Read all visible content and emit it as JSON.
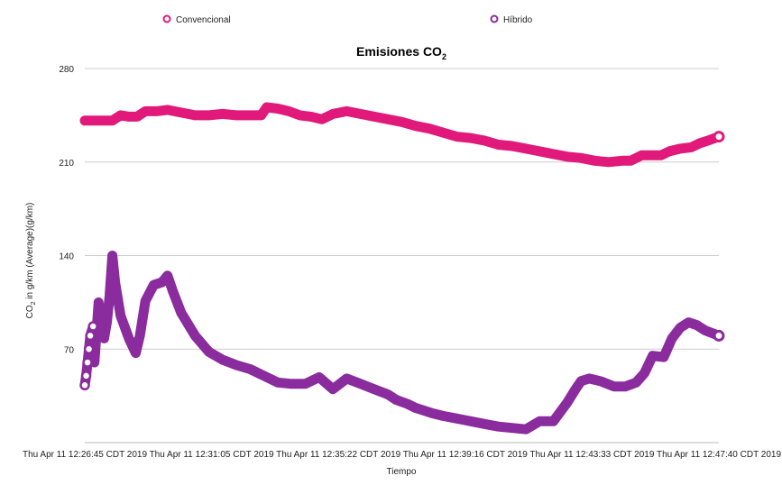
{
  "chart_data": {
    "type": "line",
    "title": "Emisiones CO",
    "title_subscript": "2",
    "xlabel": "Tiempo",
    "ylabel_prefix": "CO",
    "ylabel_subscript": "2",
    "ylabel_suffix": " in g/km (Average)(g/km)",
    "ylim": [
      0,
      280
    ],
    "yticks": [
      70,
      140,
      210,
      280
    ],
    "grid": true,
    "legend_position": "top",
    "x_tick_labels": [
      "Thu Apr 11 12:26:45 CDT 2019",
      "Thu Apr 11 12:31:05 CDT 2019",
      "Thu Apr 11 12:35:22 CDT 2019",
      "Thu Apr 11 12:39:16 CDT 2019",
      "Thu Apr 11 12:43:33 CDT 2019",
      "Thu Apr 11 12:47:40 CDT 2019"
    ],
    "x_unit": "minutes",
    "x_range": [
      0,
      23
    ],
    "series": [
      {
        "name": "Convencional",
        "color": "#e0197a",
        "x": [
          0,
          0.8,
          1.0,
          1.3,
          1.6,
          1.9,
          2.2,
          2.6,
          3.0,
          3.5,
          4.0,
          4.5,
          5.0,
          5.5,
          6.0,
          6.4,
          6.6,
          7.0,
          7.4,
          7.8,
          8.2,
          8.6,
          9.0,
          9.5,
          10.0,
          10.5,
          11.0,
          11.5,
          12.0,
          12.5,
          13.0,
          13.5,
          14.0,
          14.5,
          15.0,
          15.5,
          16.0,
          16.5,
          17.0,
          17.5,
          18.0,
          18.5,
          19.0,
          19.5,
          19.8,
          20.2,
          20.6,
          20.9,
          21.2,
          21.6,
          22.0,
          22.3,
          22.6,
          23.0
        ],
        "values": [
          241,
          241,
          241,
          245,
          244,
          244,
          248,
          248,
          249,
          247,
          245,
          245,
          246,
          245,
          245,
          245,
          251,
          250,
          248,
          245,
          244,
          242,
          246,
          248,
          246,
          244,
          242,
          240,
          237,
          235,
          232,
          229,
          228,
          226,
          223,
          222,
          220,
          218,
          216,
          214,
          213,
          211,
          210,
          211,
          211,
          215,
          215,
          215,
          218,
          220,
          221,
          224,
          226,
          229
        ]
      },
      {
        "name": "Híbrido",
        "color": "#8a2b9e",
        "x": [
          0,
          0.05,
          0.1,
          0.15,
          0.2,
          0.3,
          0.35,
          0.5,
          0.55,
          0.7,
          0.8,
          0.9,
          1.0,
          1.1,
          1.3,
          1.6,
          1.85,
          2.0,
          2.2,
          2.5,
          2.8,
          3.0,
          3.2,
          3.5,
          4.0,
          4.5,
          5.0,
          5.5,
          6.0,
          6.5,
          7.0,
          7.5,
          8.0,
          8.5,
          9.0,
          9.5,
          10.0,
          10.5,
          11.0,
          11.3,
          11.7,
          12.0,
          12.3,
          12.6,
          13.0,
          13.5,
          14.0,
          14.5,
          15.0,
          15.5,
          16.0,
          16.5,
          17.0,
          17.5,
          17.8,
          18.0,
          18.3,
          18.7,
          19.2,
          19.6,
          20.0,
          20.3,
          20.6,
          21.0,
          21.3,
          21.6,
          21.9,
          22.2,
          22.5,
          23.0
        ],
        "values": [
          43,
          50,
          60,
          70,
          80,
          87,
          60,
          105,
          95,
          78,
          90,
          110,
          140,
          120,
          95,
          78,
          67,
          80,
          106,
          118,
          120,
          125,
          113,
          97,
          80,
          68,
          62,
          58,
          55,
          50,
          45,
          44,
          44,
          49,
          40,
          48,
          44,
          40,
          36,
          32,
          29,
          26,
          24,
          22,
          20,
          18,
          16,
          14,
          12,
          11,
          10,
          16,
          16,
          30,
          40,
          46,
          48,
          46,
          42,
          42,
          45,
          52,
          65,
          64,
          78,
          86,
          90,
          88,
          84,
          80
        ]
      }
    ]
  }
}
